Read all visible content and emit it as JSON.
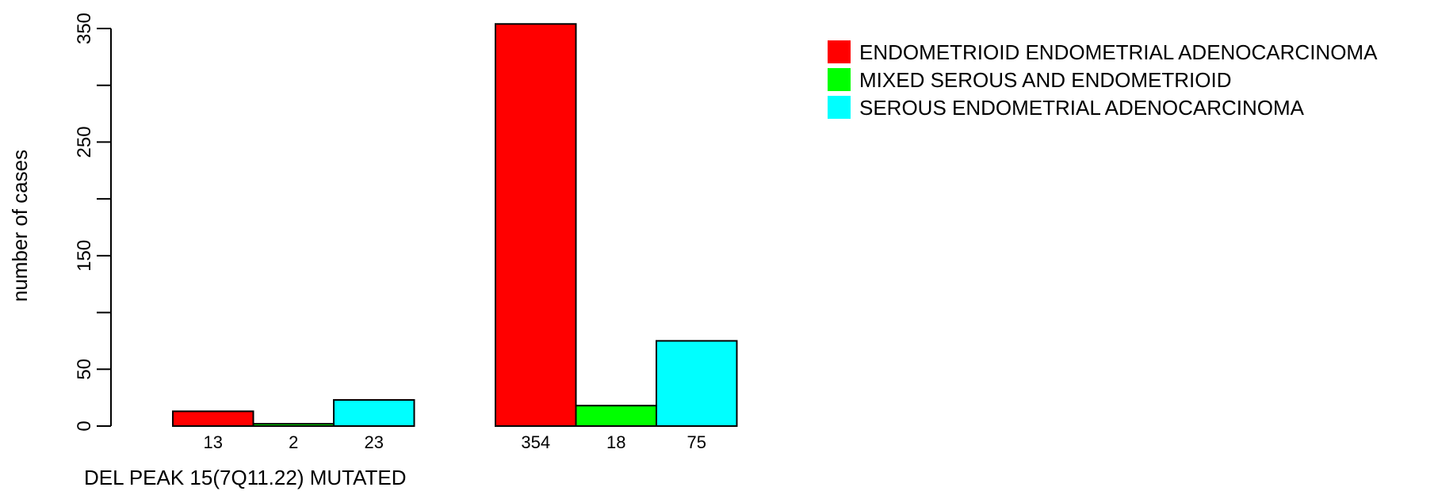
{
  "chart_data": {
    "type": "bar",
    "title": "",
    "xlabel": "DEL PEAK 15(7Q11.22) MUTATED",
    "ylabel": "number of cases",
    "ylim": [
      0,
      350
    ],
    "yticks": [
      0,
      50,
      150,
      250,
      350
    ],
    "grid": false,
    "legend_position": "top-right",
    "colors": [
      "#ff0000",
      "#00ff00",
      "#00ffff"
    ],
    "series": [
      {
        "name": "ENDOMETRIOID ENDOMETRIAL ADENOCARCINOMA",
        "values": [
          13,
          354
        ]
      },
      {
        "name": "MIXED SEROUS AND ENDOMETRIOID",
        "values": [
          2,
          18
        ]
      },
      {
        "name": "SEROUS ENDOMETRIAL ADENOCARCINOMA",
        "values": [
          23,
          75
        ]
      }
    ],
    "bar_labels": [
      "13",
      "2",
      "23",
      "354",
      "18",
      "75"
    ]
  }
}
